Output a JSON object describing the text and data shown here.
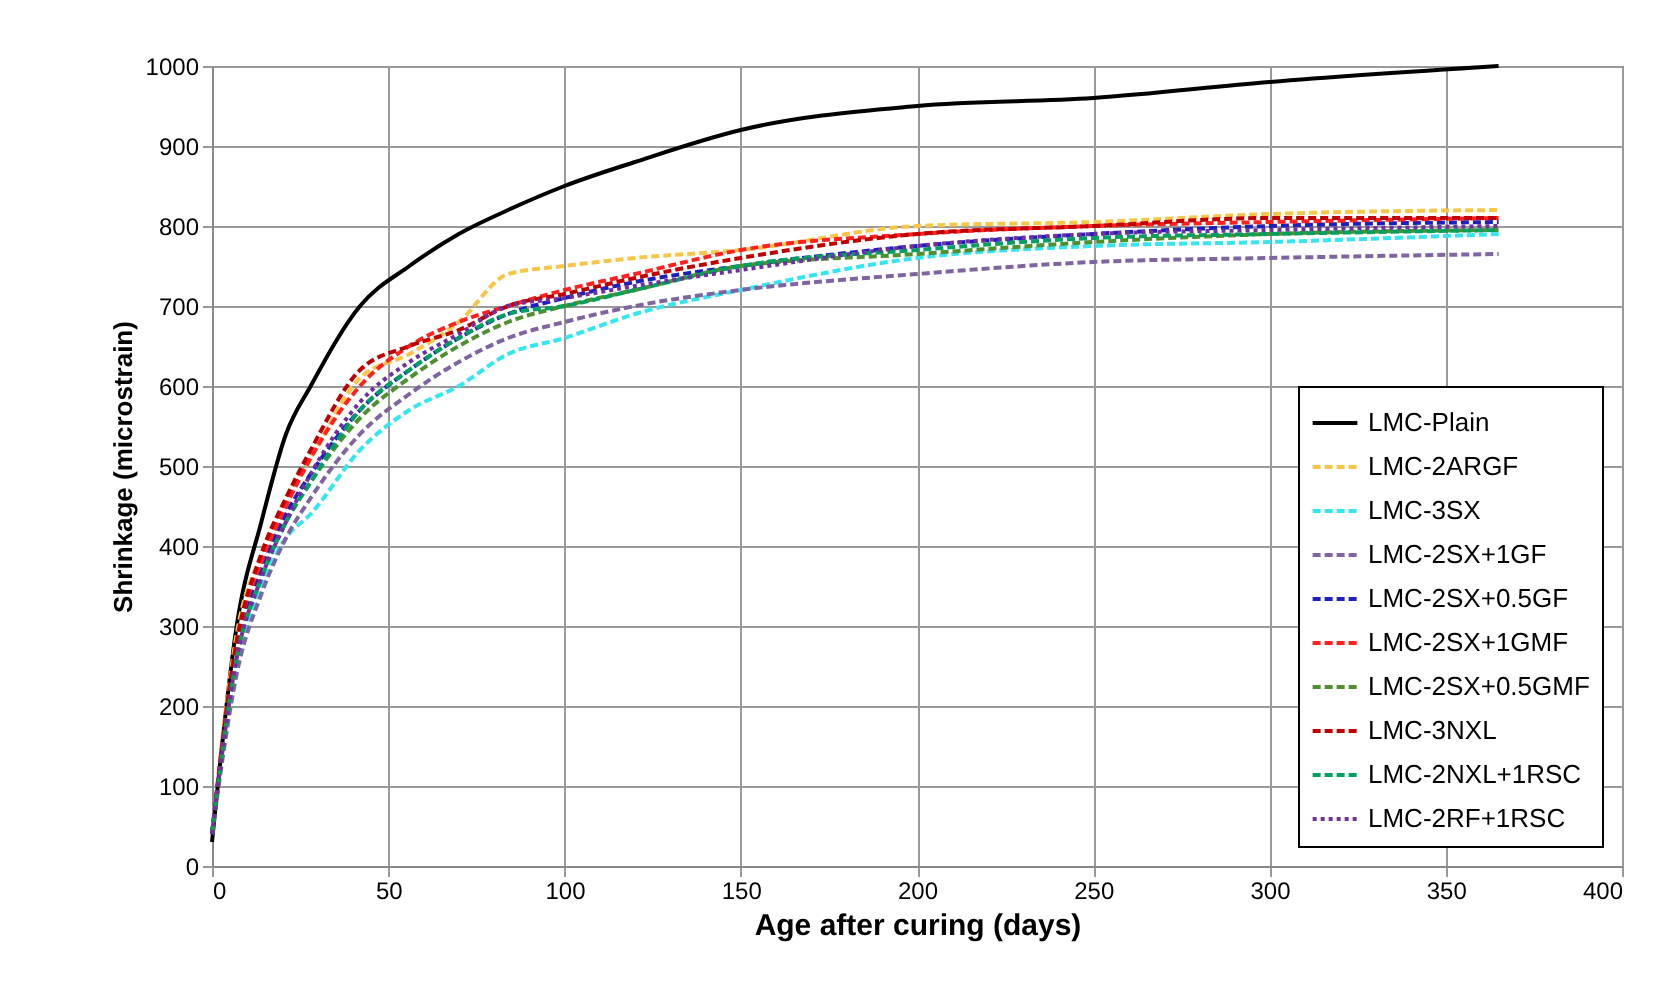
{
  "chart_data": {
    "type": "line",
    "xlabel": "Age after curing (days)",
    "ylabel": "Shrinkage (microstrain)",
    "xlim": [
      0,
      400
    ],
    "ylim": [
      0,
      1000
    ],
    "xticks": [
      0,
      50,
      100,
      150,
      200,
      250,
      300,
      350,
      400
    ],
    "yticks": [
      0,
      100,
      200,
      300,
      400,
      500,
      600,
      700,
      800,
      900,
      1000
    ],
    "grid": true,
    "legend": "bottom right",
    "marker": "none",
    "x": [
      0,
      7,
      14,
      21,
      28,
      42,
      56,
      70,
      84,
      100,
      120,
      150,
      200,
      250,
      300,
      365
    ],
    "series": [
      {
        "name": "LMC-Plain",
        "color": "#000000",
        "line_style": "solid",
        "values": [
          30,
          300,
          430,
          540,
          600,
          700,
          750,
          790,
          820,
          850,
          880,
          920,
          950,
          960,
          980,
          1000
        ]
      },
      {
        "name": "LMC-2ARGF",
        "color": "#f7c646",
        "line_style": "dashed",
        "values": [
          40,
          290,
          390,
          460,
          510,
          610,
          640,
          680,
          740,
          750,
          760,
          770,
          800,
          805,
          815,
          820
        ]
      },
      {
        "name": "LMC-3SX",
        "color": "#33e6f0",
        "line_style": "dashed",
        "values": [
          40,
          250,
          350,
          410,
          440,
          520,
          570,
          600,
          640,
          660,
          690,
          720,
          760,
          775,
          780,
          790
        ]
      },
      {
        "name": "LMC-2SX+1GF",
        "color": "#8064a2",
        "line_style": "dashed",
        "values": [
          40,
          240,
          340,
          410,
          460,
          540,
          590,
          630,
          660,
          680,
          700,
          720,
          740,
          755,
          760,
          765
        ]
      },
      {
        "name": "LMC-2SX+0.5GF",
        "color": "#1f1fbf",
        "line_style": "dashed",
        "values": [
          40,
          270,
          370,
          440,
          490,
          570,
          620,
          660,
          690,
          710,
          730,
          750,
          775,
          790,
          800,
          805
        ]
      },
      {
        "name": "LMC-2SX+1GMF",
        "color": "#ff2020",
        "line_style": "dashed",
        "values": [
          40,
          280,
          380,
          450,
          510,
          600,
          650,
          680,
          700,
          720,
          740,
          770,
          790,
          800,
          805,
          810
        ]
      },
      {
        "name": "LMC-2SX+0.5GMF",
        "color": "#4f8f2f",
        "line_style": "dashed",
        "values": [
          40,
          260,
          360,
          430,
          480,
          560,
          610,
          650,
          680,
          700,
          720,
          750,
          765,
          780,
          790,
          795
        ]
      },
      {
        "name": "LMC-3NXL",
        "color": "#c00000",
        "line_style": "dashed",
        "values": [
          40,
          280,
          390,
          460,
          520,
          620,
          650,
          670,
          700,
          715,
          735,
          760,
          790,
          800,
          810,
          810
        ]
      },
      {
        "name": "LMC-2NXL+1RSC",
        "color": "#00a060",
        "line_style": "dashed",
        "values": [
          40,
          260,
          360,
          430,
          480,
          570,
          620,
          660,
          690,
          700,
          720,
          750,
          770,
          785,
          790,
          795
        ]
      },
      {
        "name": "LMC-2RF+1RSC",
        "color": "#7030a0",
        "line_style": "dotted",
        "values": [
          40,
          260,
          360,
          430,
          490,
          580,
          630,
          665,
          700,
          710,
          725,
          745,
          775,
          790,
          795,
          800
        ]
      }
    ]
  }
}
